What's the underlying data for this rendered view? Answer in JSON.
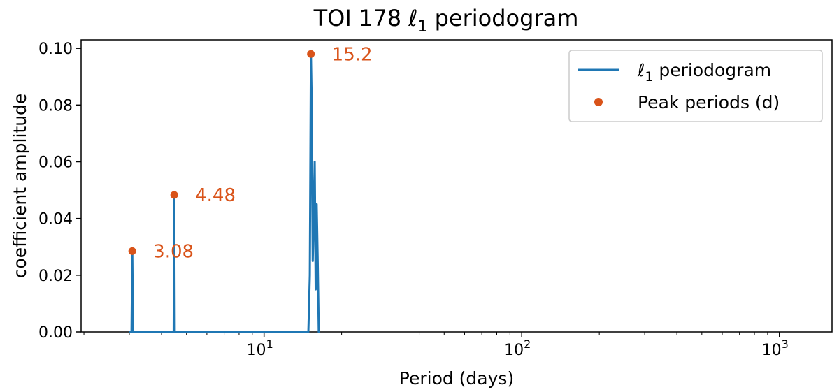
{
  "chart_data": {
    "type": "line",
    "title": "TOI 178 ℓ₁ periodogram",
    "title_parts": {
      "prefix": "TOI 178 ",
      "symbol": "ℓ",
      "subscript": "1",
      "suffix": " periodogram"
    },
    "xlabel": "Period (days)",
    "ylabel": "coefficient amplitude",
    "xscale": "log",
    "xlim": [
      1.95,
      1600
    ],
    "ylim": [
      0,
      0.103
    ],
    "x_major_ticks": [
      10,
      100,
      1000
    ],
    "x_tick_labels": [
      {
        "base": "10",
        "exp": "1"
      },
      {
        "base": "10",
        "exp": "2"
      },
      {
        "base": "10",
        "exp": "3"
      }
    ],
    "y_ticks": [
      0.0,
      0.02,
      0.04,
      0.06,
      0.08,
      0.1
    ],
    "y_tick_labels": [
      "0.00",
      "0.02",
      "0.04",
      "0.06",
      "0.08",
      "0.10"
    ],
    "colors": {
      "line": "#1f77b4",
      "peaks": "#d95319"
    },
    "series": [
      {
        "name": "periodogram",
        "x": [
          3.0,
          3.06,
          3.08,
          3.1,
          3.16,
          4.4,
          4.46,
          4.48,
          4.5,
          4.56,
          14.85,
          15.05,
          15.2,
          15.32,
          15.45,
          15.58,
          15.72,
          15.86,
          16.0,
          16.15,
          16.3,
          16.45
        ],
        "y": [
          0,
          0,
          0.0285,
          0,
          0,
          0,
          0,
          0.0483,
          0,
          0,
          0,
          0.02,
          0.098,
          0.08,
          0.025,
          0.04,
          0.06,
          0.015,
          0.045,
          0.025,
          0.0,
          0.0
        ]
      }
    ],
    "peaks": [
      {
        "period": 3.08,
        "amplitude": 0.0285,
        "label": "3.08"
      },
      {
        "period": 4.48,
        "amplitude": 0.0483,
        "label": "4.48"
      },
      {
        "period": 15.2,
        "amplitude": 0.098,
        "label": "15.2"
      }
    ],
    "legend": {
      "position": "upper-right",
      "entries": [
        {
          "symbol": "ℓ",
          "subscript": "1",
          "suffix": " periodogram",
          "marker": "line"
        },
        {
          "text": "Peak periods (d)",
          "marker": "dot"
        }
      ]
    }
  }
}
